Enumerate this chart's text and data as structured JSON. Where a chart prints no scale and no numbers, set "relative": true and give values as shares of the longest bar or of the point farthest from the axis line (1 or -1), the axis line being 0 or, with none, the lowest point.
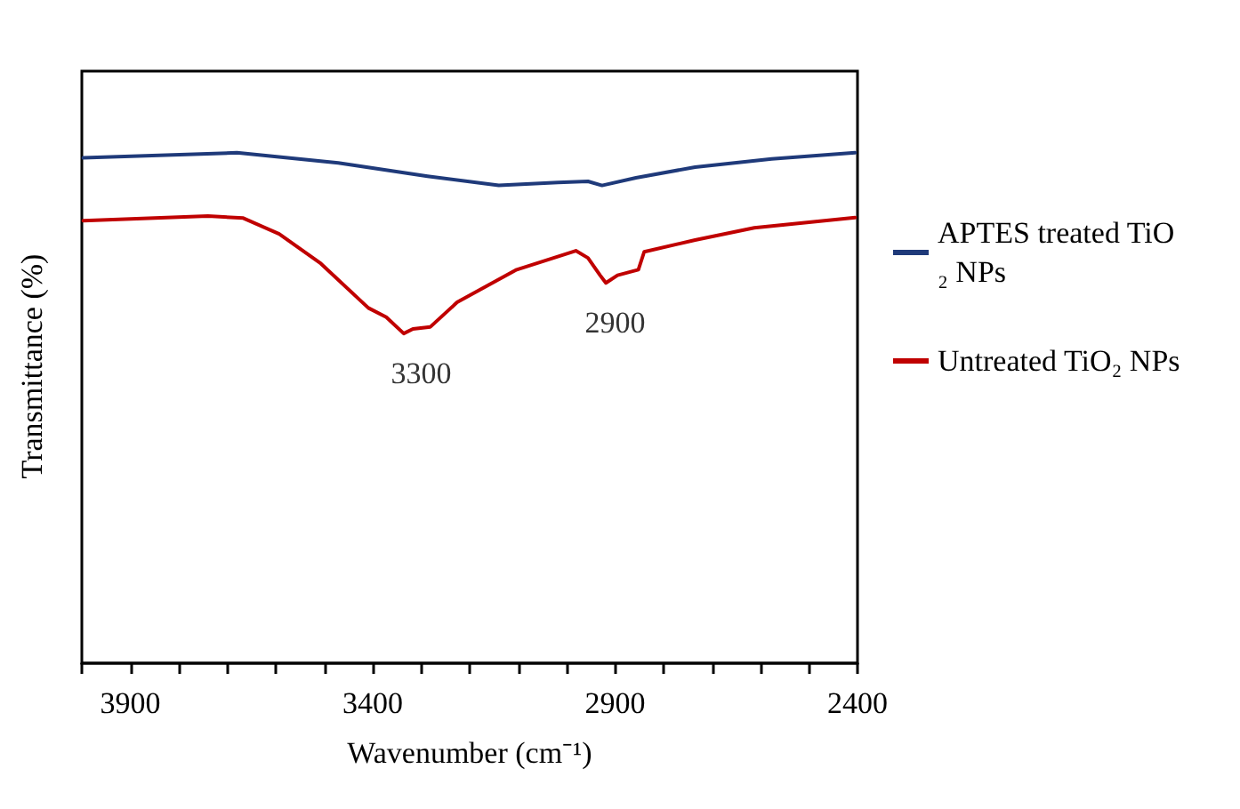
{
  "chart_data": {
    "type": "line",
    "relative": true,
    "xlabel": "Wavenumber (cm⁻¹)",
    "ylabel": "Transmittance (%)",
    "xlim": [
      4000,
      2400
    ],
    "xticks": [
      {
        "value": 4000,
        "label": null
      },
      3900,
      {
        "value": 3800,
        "label": null
      },
      {
        "value": 3700,
        "label": null
      },
      {
        "value": 3600,
        "label": null
      },
      {
        "value": 3500,
        "label": null
      },
      3400,
      {
        "value": 3300,
        "label": null
      },
      {
        "value": 3200,
        "label": null
      },
      {
        "value": 3100,
        "label": null
      },
      {
        "value": 3000,
        "label": null
      },
      2900,
      {
        "value": 2800,
        "label": null
      },
      {
        "value": 2700,
        "label": null
      },
      {
        "value": 2600,
        "label": null
      },
      {
        "value": 2500,
        "label": null
      },
      2400
    ],
    "legend": "right",
    "grid": false,
    "marker": "none",
    "line_style": "solid",
    "series": [
      {
        "name": "APTES treated TiO₂ NPs",
        "color": "#1f3a7a",
        "x": [
          3997,
          3680,
          3471,
          3287,
          3140,
          3018,
          2956,
          2927,
          2857,
          2735,
          2577,
          2405
        ],
        "values": [
          0.99,
          1.0,
          0.98,
          0.954,
          0.936,
          0.942,
          0.944,
          0.936,
          0.951,
          0.972,
          0.988,
          1.0
        ]
      },
      {
        "name": "Untreated TiO₂ NPs",
        "color": "#c00000",
        "x": [
          3997,
          3740,
          3667,
          3593,
          3507,
          3409,
          3372,
          3336,
          3317,
          3281,
          3226,
          3103,
          2981,
          2956,
          2931,
          2919,
          2895,
          2852,
          2840,
          2735,
          2613,
          2405
        ],
        "values": [
          0.867,
          0.876,
          0.872,
          0.841,
          0.783,
          0.696,
          0.678,
          0.646,
          0.655,
          0.659,
          0.707,
          0.771,
          0.808,
          0.794,
          0.76,
          0.745,
          0.76,
          0.771,
          0.806,
          0.829,
          0.853,
          0.873
        ]
      }
    ],
    "annotations": [
      {
        "text": "3300",
        "x": 3300,
        "y": 0.646
      },
      {
        "text": "2900",
        "x": 2900,
        "y": 0.745
      }
    ]
  }
}
